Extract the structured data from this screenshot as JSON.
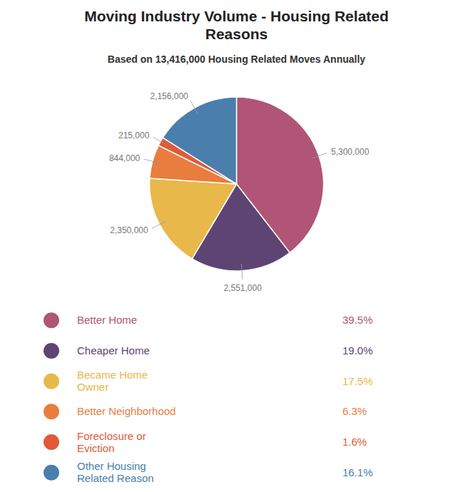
{
  "chart_data": {
    "type": "pie",
    "title": "Moving Industry Volume - Housing Related\nReasons",
    "subtitle": "Based on 13,416,000 Housing Related Moves Annually",
    "categories": [
      "Better Home",
      "Cheaper Home",
      "Became Home\nOwner",
      "Better Neighborhood",
      "Foreclosure or\nEviction",
      "Other Housing\nRelated Reason"
    ],
    "values": [
      5300000,
      2551000,
      2350000,
      844000,
      215000,
      2156000
    ],
    "value_labels": [
      "5,300,000",
      "2,551,000",
      "2,350,000",
      "844,000",
      "215,000",
      "2,156,000"
    ],
    "percentages": [
      39.5,
      19.0,
      17.5,
      6.3,
      1.6,
      16.1
    ],
    "percentage_labels": [
      "39.5%",
      "19.0%",
      "17.5%",
      "6.3%",
      "1.6%",
      "16.1%"
    ],
    "colors": [
      "#b05575",
      "#5e4472",
      "#e8b84b",
      "#e87d3e",
      "#e05a3a",
      "#4a7fad"
    ],
    "data_labels": true,
    "legend": "bottom"
  }
}
